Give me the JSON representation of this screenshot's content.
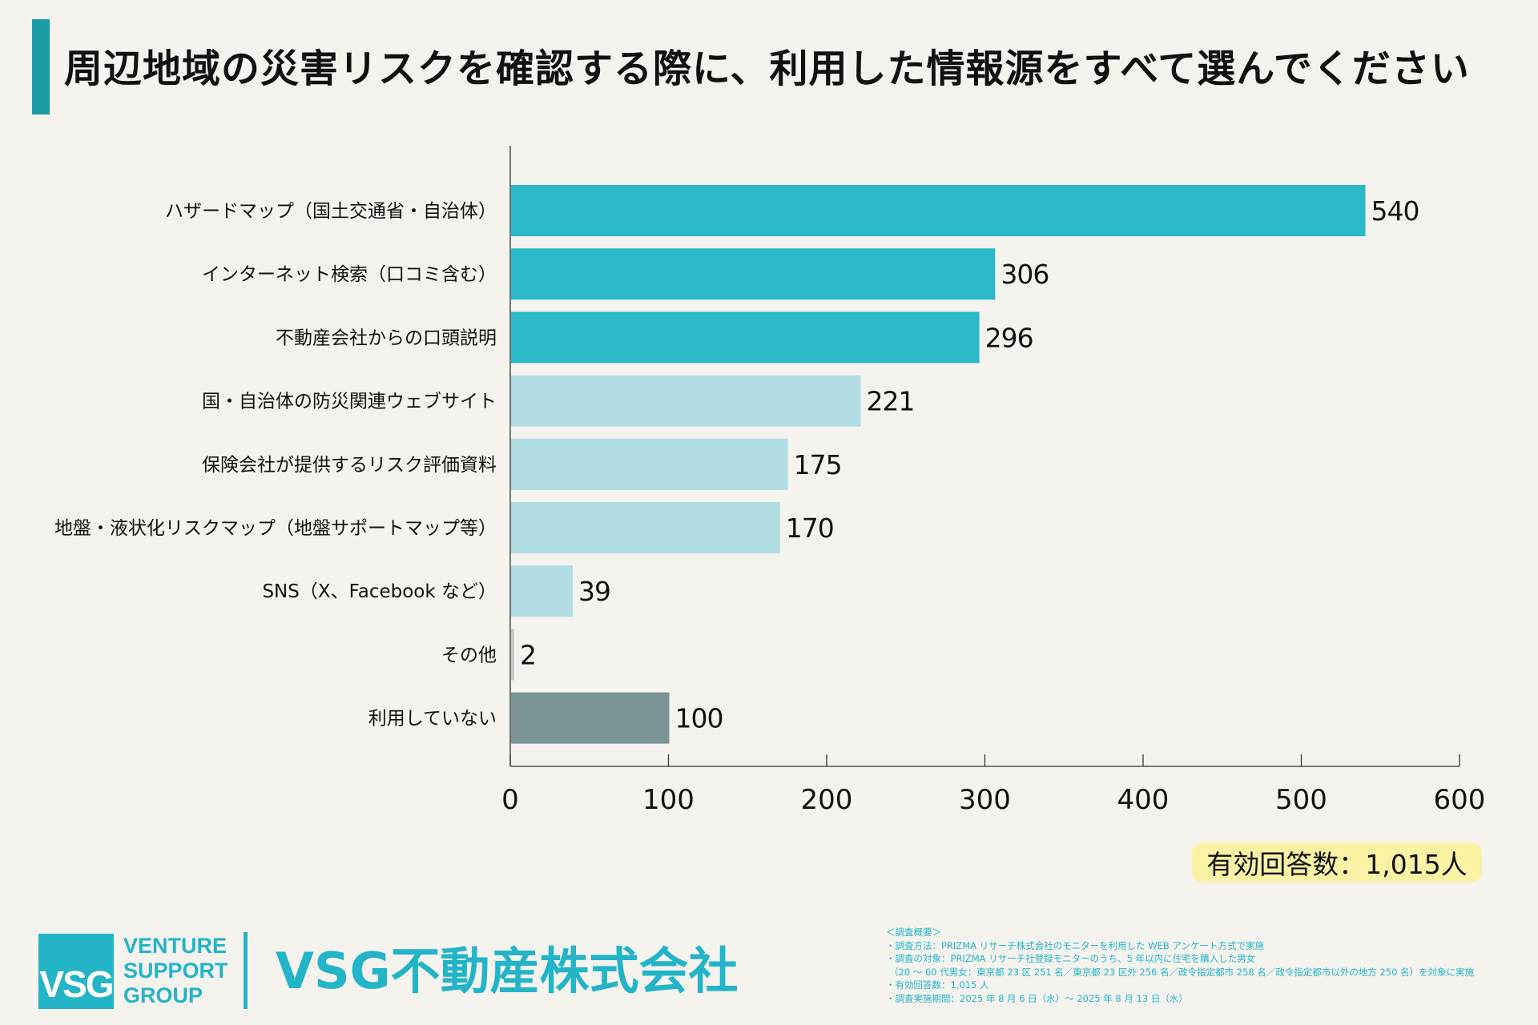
{
  "title": "周辺地域の災害リスクを確認する際に、利用した情報源をすべて選んでください",
  "colors": {
    "accent": "#1b9ba3",
    "bar_top": "#2bb8c8",
    "bar_mid": "#b2dde2",
    "bar_other": "#c4c9c9",
    "bar_none": "#7a9394",
    "badge": "#fbf3a4",
    "brand": "#23b4c8"
  },
  "chart_data": {
    "type": "bar",
    "orientation": "horizontal",
    "categories": [
      "ハザードマップ（国土交通省・自治体）",
      "インターネット検索（口コミ含む）",
      "不動産会社からの口頭説明",
      "国・自治体の防災関連ウェブサイト",
      "保険会社が提供するリスク評価資料",
      "地盤・液状化リスクマップ（地盤サポートマップ等）",
      "SNS（X、Facebook など）",
      "その他",
      "利用していない"
    ],
    "values": [
      540,
      306,
      296,
      221,
      175,
      170,
      39,
      2,
      100
    ],
    "bar_color_keys": [
      "bar_top",
      "bar_top",
      "bar_top",
      "bar_mid",
      "bar_mid",
      "bar_mid",
      "bar_mid",
      "bar_other",
      "bar_none"
    ],
    "xlim": [
      0,
      600
    ],
    "xticks": [
      0,
      100,
      200,
      300,
      400,
      500,
      600
    ],
    "xlabel": "",
    "ylabel": "",
    "grid": false
  },
  "respondents": "有効回答数：1,015人",
  "logo": {
    "mark": "VSG",
    "words": [
      "VENTURE",
      "SUPPORT",
      "GROUP"
    ],
    "company": "VSG不動産株式会社"
  },
  "survey_notes": [
    "＜調査概要＞",
    "・調査方法：PRIZMA リサーチ株式会社のモニターを利用した WEB アンケート方式で実施",
    "・調査の対象：PRIZMA リサーチ社登録モニターのうち、5 年以内に住宅を購入した男女",
    "（20 〜 60 代男女：東京都 23 区 251 名／東京都 23 区外 256 名／政令指定都市 258 名／政令指定都市以外の地方 250 名）を対象に実施",
    "・有効回答数：1,015 人",
    "・調査実施期間：2025 年 8 月 6 日（水）〜 2025 年 8 月 13 日（水）"
  ]
}
